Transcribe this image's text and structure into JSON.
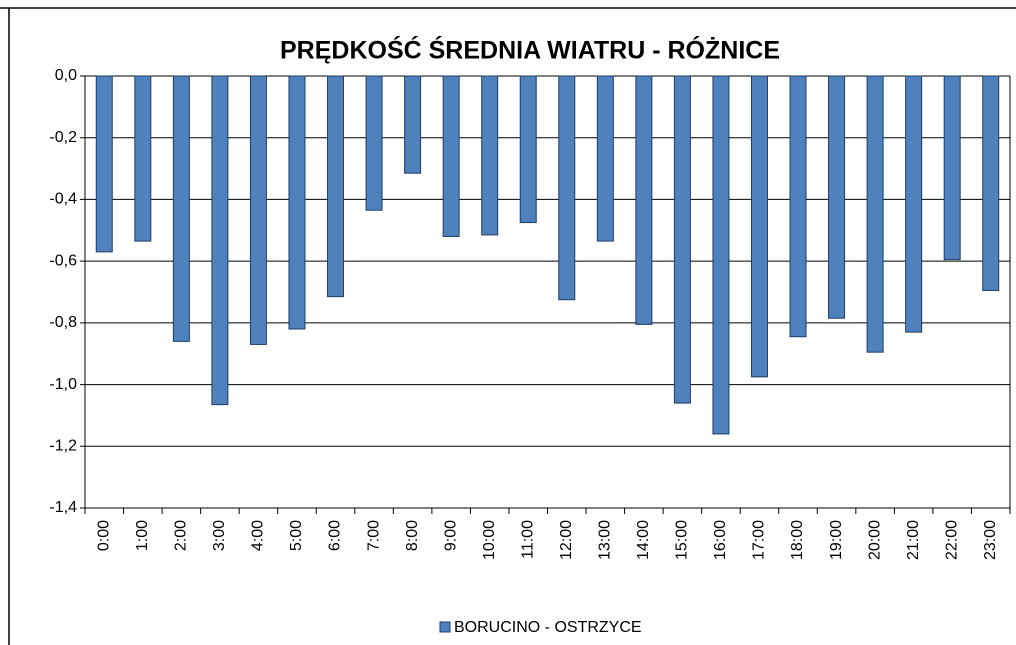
{
  "chart_data": {
    "type": "bar",
    "title": "PRĘDKOŚĆ ŚREDNIA WIATRU - RÓŻNICE",
    "categories": [
      "0:00",
      "1:00",
      "2:00",
      "3:00",
      "4:00",
      "5:00",
      "6:00",
      "7:00",
      "8:00",
      "9:00",
      "10:00",
      "11:00",
      "12:00",
      "13:00",
      "14:00",
      "15:00",
      "16:00",
      "17:00",
      "18:00",
      "19:00",
      "20:00",
      "21:00",
      "22:00",
      "23:00"
    ],
    "series": [
      {
        "name": "BORUCINO - OSTRZYCE",
        "color": "#4f81bd",
        "values": [
          -0.57,
          -0.535,
          -0.86,
          -1.065,
          -0.87,
          -0.82,
          -0.715,
          -0.435,
          -0.315,
          -0.52,
          -0.515,
          -0.475,
          -0.725,
          -0.535,
          -0.805,
          -1.06,
          -1.16,
          -0.975,
          -0.845,
          -0.785,
          -0.895,
          -0.83,
          -0.595,
          -0.695
        ]
      }
    ],
    "ylim": [
      -1.4,
      0
    ],
    "yticks": [
      {
        "value": 0,
        "label": "0,0"
      },
      {
        "value": -0.2,
        "label": "-0,2"
      },
      {
        "value": -0.4,
        "label": "-0,4"
      },
      {
        "value": -0.6,
        "label": "-0,6"
      },
      {
        "value": -0.8,
        "label": "-0,8"
      },
      {
        "value": -1.0,
        "label": "-1,0"
      },
      {
        "value": -1.2,
        "label": "-1,2"
      },
      {
        "value": -1.4,
        "label": "-1,4"
      }
    ],
    "grid": true,
    "legend": "bottom"
  }
}
